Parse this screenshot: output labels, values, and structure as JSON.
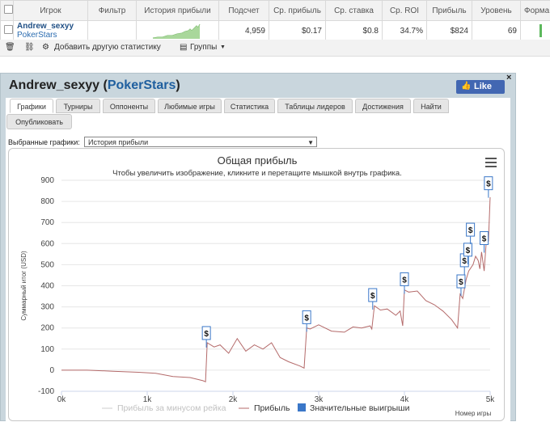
{
  "table": {
    "headers": [
      "Игрок",
      "Фильтр",
      "История прибыли",
      "Подсчет",
      "Ср. прибыль",
      "Ср. ставка",
      "Ср. ROI",
      "Прибыль",
      "Уровень",
      "Форма"
    ],
    "row": {
      "player": "Andrew_sexyy",
      "site": "PokerStars",
      "filter": "",
      "count": "4,959",
      "avg_profit": "$0.17",
      "avg_stake": "$0.8",
      "avg_roi": "34.7%",
      "profit": "$824",
      "level": "69"
    }
  },
  "toolbar": {
    "add_stat": "Добавить другую статистику",
    "groups": "Группы"
  },
  "panel": {
    "player": "Andrew_sexyy",
    "site": "PokerStars",
    "like": "Like",
    "close": "×",
    "tabs": [
      "Графики",
      "Турниры",
      "Оппоненты",
      "Любимые игры",
      "Статистика",
      "Таблицы лидеров",
      "Достижения",
      "Найти",
      "Опубликовать"
    ],
    "active_tab": "Графики",
    "select_label": "Выбранные графики:",
    "select_value": "История прибыли"
  },
  "chart_data": {
    "type": "line",
    "title": "Общая прибыль",
    "subtitle": "Чтобы увеличить изображение, кликните и перетащите мышкой внутрь графика.",
    "xlabel": "Номер игры",
    "ylabel": "Суммарный итог (USD)",
    "xlim": [
      0,
      5000
    ],
    "ylim": [
      -100,
      900
    ],
    "x_ticks": [
      "0k",
      "1k",
      "2k",
      "3k",
      "4k",
      "5k"
    ],
    "y_ticks": [
      "-100",
      "0",
      "100",
      "200",
      "300",
      "400",
      "500",
      "600",
      "700",
      "800",
      "900"
    ],
    "legend": [
      "Прибыль за минусом рейка",
      "Прибыль",
      "Значительные выигрыши"
    ],
    "legend_colors": [
      "#cccccc",
      "#b46a6a",
      "#3a77c8"
    ],
    "series": [
      {
        "name": "Прибыль",
        "color": "#b46a6a",
        "x": [
          0,
          300,
          600,
          900,
          1100,
          1300,
          1500,
          1650,
          1680,
          1700,
          1780,
          1850,
          1950,
          2050,
          2150,
          2250,
          2350,
          2450,
          2550,
          2650,
          2780,
          2830,
          2860,
          2900,
          3000,
          3150,
          3300,
          3400,
          3500,
          3600,
          3620,
          3650,
          3720,
          3800,
          3900,
          3950,
          3980,
          4000,
          4050,
          4150,
          4250,
          4350,
          4450,
          4550,
          4620,
          4650,
          4680,
          4720,
          4750,
          4800,
          4830,
          4860,
          4880,
          4900,
          4930,
          4960,
          4980,
          5000
        ],
        "y": [
          0,
          0,
          -5,
          -10,
          -15,
          -30,
          -35,
          -50,
          -55,
          130,
          110,
          120,
          80,
          150,
          90,
          120,
          100,
          130,
          60,
          40,
          20,
          10,
          200,
          195,
          215,
          185,
          180,
          205,
          200,
          210,
          195,
          305,
          285,
          290,
          260,
          280,
          210,
          380,
          370,
          375,
          330,
          310,
          280,
          240,
          200,
          360,
          340,
          430,
          470,
          500,
          540,
          520,
          480,
          560,
          470,
          640,
          610,
          820
        ]
      }
    ],
    "big_wins": [
      {
        "x": 1690,
        "y": 130
      },
      {
        "x": 2860,
        "y": 205
      },
      {
        "x": 3630,
        "y": 310
      },
      {
        "x": 4000,
        "y": 385
      },
      {
        "x": 4660,
        "y": 375
      },
      {
        "x": 4700,
        "y": 475
      },
      {
        "x": 4740,
        "y": 525
      },
      {
        "x": 4770,
        "y": 620
      },
      {
        "x": 4930,
        "y": 580
      },
      {
        "x": 4980,
        "y": 840
      }
    ],
    "big_win_label": "$"
  }
}
